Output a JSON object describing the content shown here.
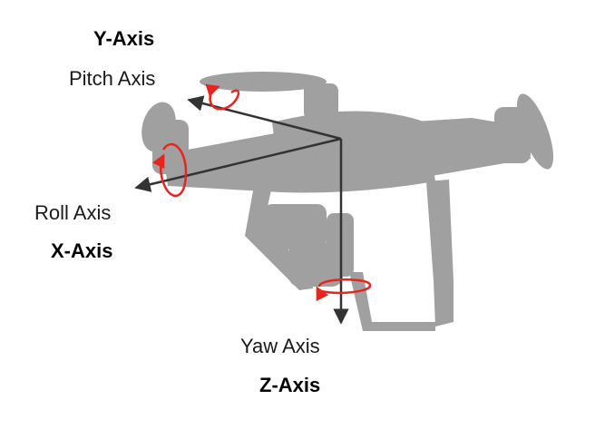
{
  "colors": {
    "drone_body": "#a0a0a0",
    "axis_line": "#333333",
    "rotation_arrow": "#e8241c",
    "text": "#1a1a1a"
  },
  "labels": {
    "y_axis": "Y-Axis",
    "pitch_axis": "Pitch Axis",
    "roll_axis": "Roll Axis",
    "x_axis": "X-Axis",
    "yaw_axis": "Yaw Axis",
    "z_axis": "Z-Axis"
  }
}
